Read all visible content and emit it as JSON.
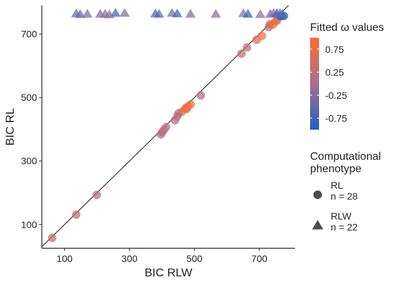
{
  "chart_data": {
    "type": "scatter",
    "xlabel": "BIC RLW",
    "ylabel": "BIC RL",
    "x_ticks": [
      100,
      300,
      500,
      700
    ],
    "y_ticks": [
      100,
      300,
      500,
      700
    ],
    "xlim": [
      30,
      810
    ],
    "ylim": [
      25,
      790
    ],
    "grid": false,
    "reference_line": "y = x",
    "color_legend": {
      "title": "Fitted ω values",
      "ticks": [
        0.75,
        0.25,
        -0.25,
        -0.75
      ],
      "tick_labels": [
        "0.75",
        "0.25",
        "-0.25",
        "-0.75"
      ],
      "range": [
        -1,
        1
      ],
      "colors": {
        "low": "#1f5fc4",
        "mid": "#a8708f",
        "high": "#ff6a30"
      }
    },
    "shape_legend": {
      "title_lines": [
        "Computational",
        "phenotype"
      ],
      "entries": [
        {
          "shape": "circle",
          "name": "RL",
          "count": "n = 28"
        },
        {
          "shape": "triangle",
          "name": "RLW",
          "count": "n = 22"
        }
      ]
    },
    "series": [
      {
        "name": "RL",
        "shape": "circle",
        "points": [
          {
            "x": 62,
            "y": 58,
            "w": 0.35
          },
          {
            "x": 136,
            "y": 131,
            "w": 0.3
          },
          {
            "x": 199,
            "y": 193,
            "w": 0.2
          },
          {
            "x": 397,
            "y": 384,
            "w": 0.1
          },
          {
            "x": 401,
            "y": 391,
            "w": 0.15
          },
          {
            "x": 406,
            "y": 398,
            "w": 0.2
          },
          {
            "x": 413,
            "y": 407,
            "w": 0.25
          },
          {
            "x": 440,
            "y": 428,
            "w": 0.1
          },
          {
            "x": 447,
            "y": 440,
            "w": 0.2
          },
          {
            "x": 451,
            "y": 450,
            "w": 0.15
          },
          {
            "x": 461,
            "y": 455,
            "w": 0.55
          },
          {
            "x": 472,
            "y": 466,
            "w": 0.9
          },
          {
            "x": 476,
            "y": 464,
            "w": 0.6
          },
          {
            "x": 480,
            "y": 472,
            "w": 0.9
          },
          {
            "x": 488,
            "y": 478,
            "w": 0.85
          },
          {
            "x": 520,
            "y": 507,
            "w": 0.2
          },
          {
            "x": 645,
            "y": 638,
            "w": 0.25
          },
          {
            "x": 662,
            "y": 658,
            "w": 0.2
          },
          {
            "x": 692,
            "y": 682,
            "w": 0.55
          },
          {
            "x": 708,
            "y": 694,
            "w": 0.9
          },
          {
            "x": 729,
            "y": 722,
            "w": 0.3
          },
          {
            "x": 733,
            "y": 731,
            "w": 0.2
          },
          {
            "x": 742,
            "y": 730,
            "w": 0.85
          },
          {
            "x": 750,
            "y": 740,
            "w": 0.95
          },
          {
            "x": 755,
            "y": 743,
            "w": 0.7
          },
          {
            "x": 764,
            "y": 757,
            "w": -0.95
          },
          {
            "x": 770,
            "y": 757,
            "w": -0.9
          },
          {
            "x": 776,
            "y": 757,
            "w": -0.85
          }
        ]
      },
      {
        "name": "RLW",
        "shape": "triangle",
        "points": [
          {
            "x": 136,
            "y": 763,
            "w": -0.5
          },
          {
            "x": 148,
            "y": 761,
            "w": -0.45
          },
          {
            "x": 170,
            "y": 762,
            "w": -0.3
          },
          {
            "x": 210,
            "y": 762,
            "w": -0.25
          },
          {
            "x": 225,
            "y": 762,
            "w": -0.2
          },
          {
            "x": 238,
            "y": 760,
            "w": -0.2
          },
          {
            "x": 257,
            "y": 765,
            "w": -0.75
          },
          {
            "x": 285,
            "y": 765,
            "w": -0.25
          },
          {
            "x": 380,
            "y": 763,
            "w": -0.7
          },
          {
            "x": 391,
            "y": 762,
            "w": -0.55
          },
          {
            "x": 431,
            "y": 765,
            "w": -0.35
          },
          {
            "x": 447,
            "y": 763,
            "w": -0.8
          },
          {
            "x": 488,
            "y": 762,
            "w": -0.3
          },
          {
            "x": 566,
            "y": 762,
            "w": -0.2
          },
          {
            "x": 651,
            "y": 764,
            "w": -0.2
          },
          {
            "x": 665,
            "y": 762,
            "w": -0.85
          },
          {
            "x": 703,
            "y": 761,
            "w": -0.15
          },
          {
            "x": 734,
            "y": 762,
            "w": -0.35
          },
          {
            "x": 744,
            "y": 765,
            "w": -0.2
          },
          {
            "x": 754,
            "y": 764,
            "w": -0.9
          },
          {
            "x": 764,
            "y": 764,
            "w": -0.4
          },
          {
            "x": 771,
            "y": 762,
            "w": -0.6
          }
        ]
      }
    ]
  }
}
